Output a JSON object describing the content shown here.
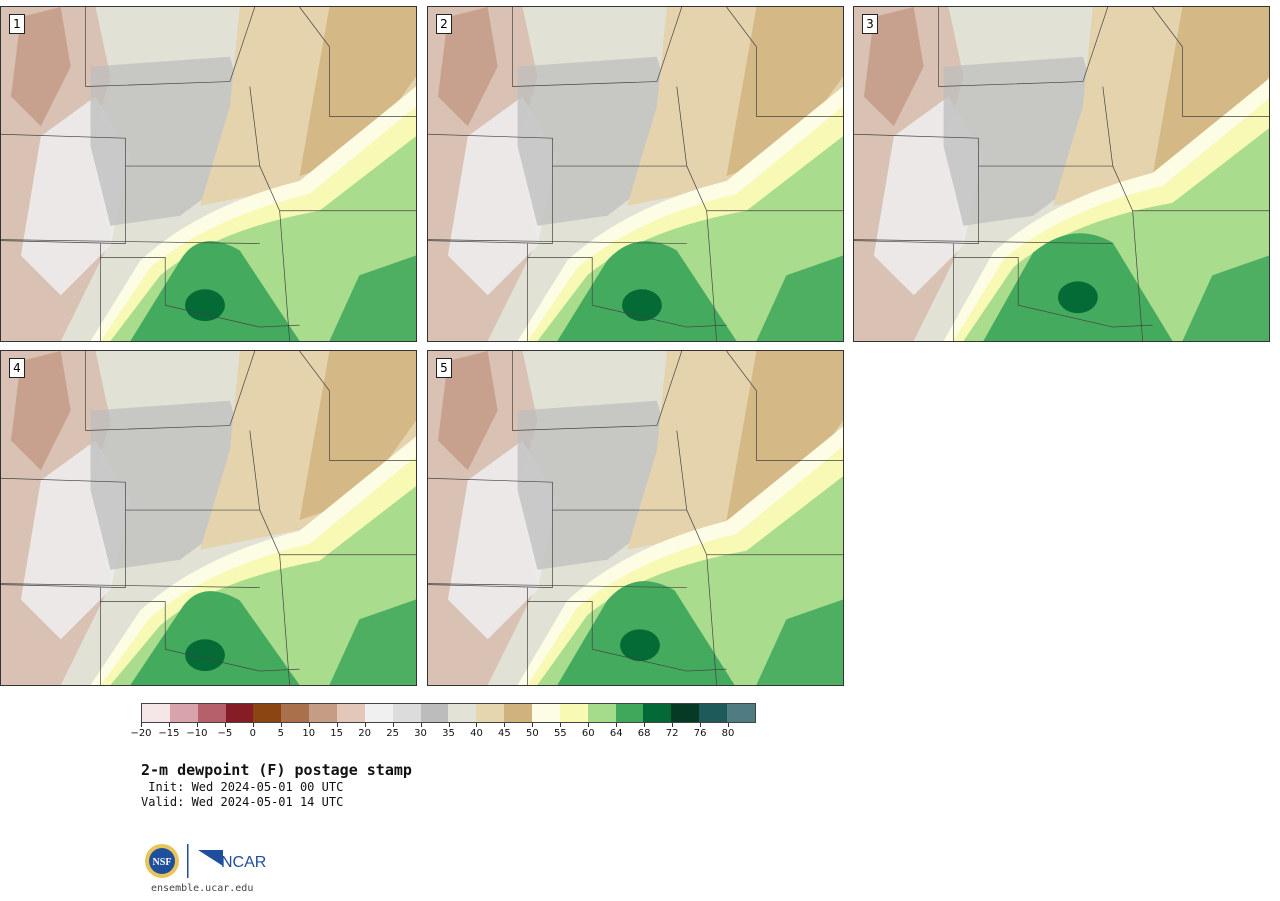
{
  "panels": [
    {
      "label": "1",
      "variant": 0
    },
    {
      "label": "2",
      "variant": 1
    },
    {
      "label": "3",
      "variant": 2
    },
    {
      "label": "4",
      "variant": 3
    },
    {
      "label": "5",
      "variant": 4
    }
  ],
  "colorbar": {
    "colors": [
      "#f5e6e8",
      "#d8a3aa",
      "#b5606a",
      "#861c25",
      "#8a4513",
      "#a9714b",
      "#c59c84",
      "#e3c7b8",
      "#f0f0f0",
      "#dcdcdc",
      "#bcbcbc",
      "#e3e2d6",
      "#e6d6ae",
      "#cfb27c",
      "#fdfde6",
      "#f8fab4",
      "#a5dc8b",
      "#40a85b",
      "#036a37",
      "#073a24",
      "#1e5a5a",
      "#4f7c82"
    ],
    "tick_labels": [
      "-20",
      "-15",
      "-10",
      "-5",
      "0",
      "5",
      "10",
      "15",
      "20",
      "25",
      "30",
      "35",
      "40",
      "45",
      "50",
      "55",
      "60",
      "64",
      "68",
      "72",
      "76",
      "80"
    ]
  },
  "title": "2-m dewpoint (F) postage stamp",
  "init": " Init: Wed 2024-05-01 00 UTC",
  "valid": "Valid: Wed 2024-05-01 14 UTC",
  "logo": {
    "nsf": "NSF",
    "ncar": "NCAR"
  },
  "site": "ensemble.ucar.edu"
}
